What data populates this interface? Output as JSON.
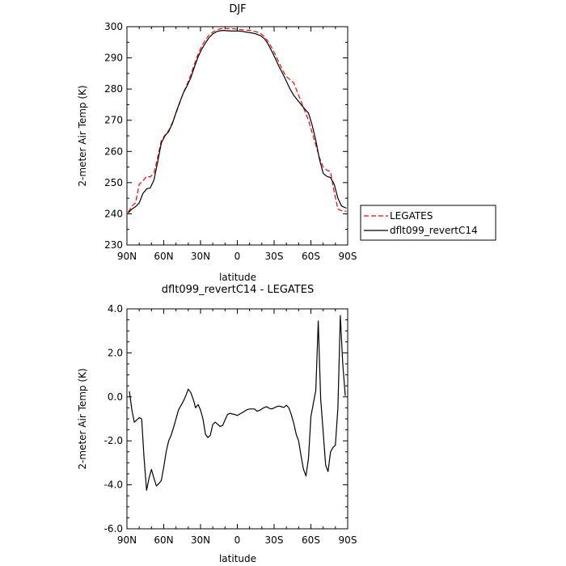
{
  "chart_data": [
    {
      "type": "line",
      "title": "DJF",
      "xlabel": "latitude",
      "ylabel": "2-meter Air Temp (K)",
      "xlim": [
        90,
        -90
      ],
      "ylim": [
        230,
        300
      ],
      "x_ticks": [
        90,
        60,
        30,
        0,
        -30,
        -60,
        -90
      ],
      "x_tick_labels": [
        "90N",
        "60N",
        "30N",
        "0",
        "30S",
        "60S",
        "90S"
      ],
      "y_ticks": [
        230,
        240,
        250,
        260,
        270,
        280,
        290,
        300
      ],
      "y_tick_labels": [
        "230",
        "240",
        "250",
        "260",
        "270",
        "280",
        "290",
        "300"
      ],
      "legend_position": "right",
      "series": [
        {
          "name": "LEGATES",
          "color": "#ff0000",
          "dash": "dashed",
          "x": [
            89,
            86,
            83,
            80,
            77,
            74,
            71,
            68,
            65,
            62,
            59,
            56,
            53,
            50,
            47,
            44,
            41,
            38,
            35,
            32,
            29,
            26,
            23,
            20,
            17,
            14,
            11,
            8,
            5,
            2,
            -1,
            -4,
            -7,
            -10,
            -13,
            -16,
            -19,
            -22,
            -25,
            -28,
            -31,
            -34,
            -37,
            -40,
            -43,
            -46,
            -49,
            -52,
            -55,
            -58,
            -61,
            -64,
            -67,
            -70,
            -73,
            -76,
            -79,
            -82,
            -85,
            -89
          ],
          "values": [
            240.5,
            242.5,
            243.5,
            249.5,
            250.5,
            252,
            251.8,
            253,
            258,
            263.5,
            265.2,
            266.7,
            269.2,
            272.2,
            275.5,
            278.8,
            281.5,
            284.5,
            288,
            291.2,
            293.8,
            295.8,
            297.3,
            298.3,
            299,
            299.3,
            299.5,
            299.4,
            299.3,
            299.3,
            299.1,
            299,
            298.9,
            298.8,
            298.6,
            298.3,
            297.8,
            296.8,
            295.3,
            293.3,
            291,
            288.5,
            286,
            284,
            283,
            282,
            279,
            276,
            273,
            270,
            266,
            262,
            258,
            255,
            254,
            253.5,
            247,
            241.5,
            241,
            240.8
          ]
        },
        {
          "name": "dflt099_revertC14",
          "color": "#000000",
          "dash": "solid",
          "x": [
            89,
            86,
            83,
            80,
            77,
            74,
            71,
            68,
            65,
            62,
            59,
            56,
            53,
            50,
            47,
            44,
            41,
            38,
            35,
            32,
            29,
            26,
            23,
            20,
            17,
            14,
            11,
            8,
            5,
            2,
            -1,
            -4,
            -7,
            -10,
            -13,
            -16,
            -19,
            -22,
            -25,
            -28,
            -31,
            -34,
            -37,
            -40,
            -43,
            -46,
            -49,
            -52,
            -55,
            -58,
            -61,
            -64,
            -67,
            -70,
            -73,
            -76,
            -79,
            -82,
            -85,
            -89
          ],
          "values": [
            240.3,
            241.5,
            242.3,
            243.5,
            246.5,
            248,
            248.3,
            250.8,
            256.5,
            262.7,
            265,
            266.4,
            268.9,
            272.5,
            275.7,
            278.8,
            281,
            283.6,
            287,
            290.3,
            292.8,
            294.8,
            296.5,
            297.7,
            298.4,
            298.7,
            298.8,
            298.7,
            298.6,
            298.6,
            298.6,
            298.5,
            298.3,
            298.1,
            297.9,
            297.6,
            297.1,
            296.2,
            294.5,
            292.2,
            289.8,
            287.2,
            285,
            282.5,
            280,
            278,
            276.5,
            275,
            273.6,
            272.3,
            268.5,
            263.5,
            257.5,
            253,
            252,
            251.6,
            249.5,
            245,
            242.5,
            241.8
          ]
        }
      ]
    },
    {
      "type": "line",
      "title": "dflt099_revertC14 - LEGATES",
      "xlabel": "latitude",
      "ylabel": "2-meter Air Temp (K)",
      "xlim": [
        90,
        -90
      ],
      "ylim": [
        -6,
        4
      ],
      "x_ticks": [
        90,
        60,
        30,
        0,
        -30,
        -60,
        -90
      ],
      "x_tick_labels": [
        "90N",
        "60N",
        "30N",
        "0",
        "30S",
        "60S",
        "90S"
      ],
      "y_ticks": [
        -6,
        -4,
        -2,
        0,
        2,
        4
      ],
      "y_tick_labels": [
        "-6.0",
        "-4.0",
        "-2.0",
        "0.0",
        "2.0",
        "4.0"
      ],
      "series": [
        {
          "color": "#000000",
          "dash": "solid",
          "x": [
            88,
            86,
            84,
            82,
            80,
            78,
            76,
            74,
            72,
            70,
            68,
            66,
            64,
            62,
            60,
            58,
            56,
            54,
            52,
            50,
            48,
            46,
            44,
            42,
            40,
            38,
            36,
            34,
            32,
            30,
            28,
            26,
            24,
            22,
            20,
            18,
            16,
            14,
            12,
            10,
            8,
            6,
            4,
            2,
            0,
            -2,
            -4,
            -6,
            -8,
            -10,
            -12,
            -14,
            -16,
            -18,
            -20,
            -22,
            -24,
            -26,
            -28,
            -30,
            -32,
            -34,
            -36,
            -38,
            -40,
            -42,
            -44,
            -46,
            -48,
            -50,
            -52,
            -54,
            -56,
            -58,
            -60,
            -62,
            -64,
            -66,
            -68,
            -70,
            -72,
            -74,
            -76,
            -78,
            -80,
            -82,
            -84,
            -86,
            -88
          ],
          "values": [
            0.25,
            -0.6,
            -1.15,
            -1.05,
            -0.95,
            -1.0,
            -2.8,
            -4.25,
            -3.7,
            -3.3,
            -3.7,
            -4.05,
            -3.95,
            -3.8,
            -3.2,
            -2.5,
            -2.0,
            -1.75,
            -1.4,
            -1.0,
            -0.6,
            -0.4,
            -0.2,
            0.05,
            0.35,
            0.2,
            -0.1,
            -0.5,
            -0.35,
            -0.6,
            -1.0,
            -1.7,
            -1.85,
            -1.75,
            -1.25,
            -1.15,
            -1.25,
            -1.35,
            -1.3,
            -1.05,
            -0.8,
            -0.75,
            -0.78,
            -0.8,
            -0.85,
            -0.78,
            -0.72,
            -0.65,
            -0.58,
            -0.55,
            -0.55,
            -0.55,
            -0.65,
            -0.62,
            -0.55,
            -0.48,
            -0.45,
            -0.52,
            -0.55,
            -0.5,
            -0.45,
            -0.42,
            -0.45,
            -0.48,
            -0.38,
            -0.5,
            -0.8,
            -1.2,
            -1.7,
            -2.0,
            -2.7,
            -3.3,
            -3.6,
            -2.8,
            -0.9,
            -0.3,
            0.3,
            3.45,
            -0.1,
            -1.6,
            -3.1,
            -3.4,
            -2.5,
            -2.3,
            -2.2,
            -0.5,
            3.7,
            1.5,
            0.05
          ]
        }
      ]
    }
  ]
}
